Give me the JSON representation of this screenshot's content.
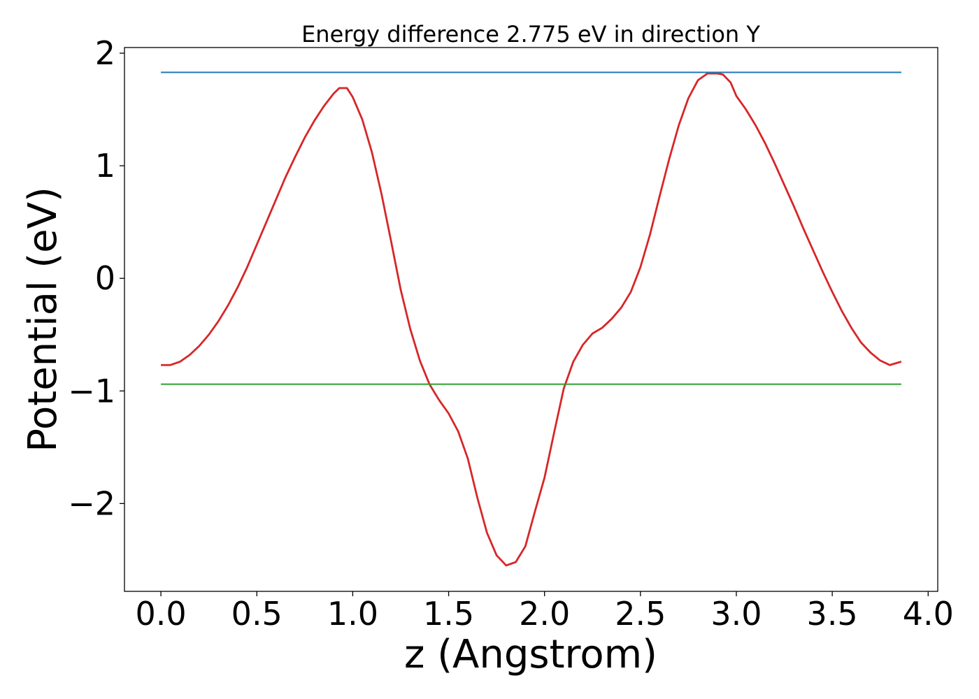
{
  "chart_data": {
    "type": "line",
    "title": "Energy difference 2.775 eV in direction Y",
    "xlabel": "z (Angstrom)",
    "ylabel": "Potential (eV)",
    "xlim": [
      -0.19,
      4.05
    ],
    "ylim": [
      -2.78,
      2.05
    ],
    "xticks": [
      0.0,
      0.5,
      1.0,
      1.5,
      2.0,
      2.5,
      3.0,
      3.5,
      4.0
    ],
    "xtick_labels": [
      "0.0",
      "0.5",
      "1.0",
      "1.5",
      "2.0",
      "2.5",
      "3.0",
      "3.5",
      "4.0"
    ],
    "yticks": [
      -2,
      -1,
      0,
      1,
      2
    ],
    "ytick_labels": [
      "−2",
      "−1",
      "0",
      "1",
      "2"
    ],
    "grid": false,
    "legend": "none",
    "series": [
      {
        "color": "#d62728",
        "x": [
          0.0,
          0.05,
          0.1,
          0.15,
          0.2,
          0.25,
          0.3,
          0.35,
          0.4,
          0.45,
          0.5,
          0.55,
          0.6,
          0.65,
          0.7,
          0.75,
          0.8,
          0.85,
          0.9,
          0.93,
          0.97,
          1.0,
          1.05,
          1.1,
          1.15,
          1.2,
          1.25,
          1.3,
          1.35,
          1.4,
          1.45,
          1.5,
          1.55,
          1.6,
          1.65,
          1.7,
          1.75,
          1.8,
          1.85,
          1.9,
          1.95,
          2.0,
          2.05,
          2.1,
          2.15,
          2.2,
          2.25,
          2.3,
          2.35,
          2.4,
          2.45,
          2.5,
          2.55,
          2.6,
          2.65,
          2.7,
          2.75,
          2.8,
          2.85,
          2.9,
          2.93,
          2.97,
          3.0,
          3.05,
          3.1,
          3.15,
          3.2,
          3.25,
          3.3,
          3.35,
          3.4,
          3.45,
          3.5,
          3.55,
          3.6,
          3.65,
          3.7,
          3.75,
          3.8,
          3.86
        ],
        "y": [
          -0.77,
          -0.77,
          -0.74,
          -0.68,
          -0.6,
          -0.5,
          -0.38,
          -0.24,
          -0.08,
          0.1,
          0.3,
          0.5,
          0.7,
          0.9,
          1.08,
          1.25,
          1.4,
          1.53,
          1.64,
          1.69,
          1.69,
          1.61,
          1.41,
          1.12,
          0.75,
          0.33,
          -0.1,
          -0.45,
          -0.73,
          -0.94,
          -1.08,
          -1.2,
          -1.36,
          -1.6,
          -1.95,
          -2.26,
          -2.46,
          -2.55,
          -2.52,
          -2.38,
          -2.07,
          -1.77,
          -1.37,
          -0.98,
          -0.74,
          -0.59,
          -0.49,
          -0.44,
          -0.36,
          -0.26,
          -0.12,
          0.1,
          0.39,
          0.73,
          1.06,
          1.36,
          1.6,
          1.76,
          1.82,
          1.82,
          1.81,
          1.74,
          1.62,
          1.5,
          1.36,
          1.2,
          1.02,
          0.83,
          0.64,
          0.44,
          0.25,
          0.06,
          -0.12,
          -0.29,
          -0.44,
          -0.57,
          -0.66,
          -0.73,
          -0.77,
          -0.74
        ]
      },
      {
        "color": "#1f77b4",
        "x": [
          0.0,
          3.86
        ],
        "y": [
          1.83,
          1.83
        ]
      },
      {
        "color": "#2ca02c",
        "x": [
          0.0,
          3.86
        ],
        "y": [
          -0.94,
          -0.94
        ]
      }
    ]
  }
}
